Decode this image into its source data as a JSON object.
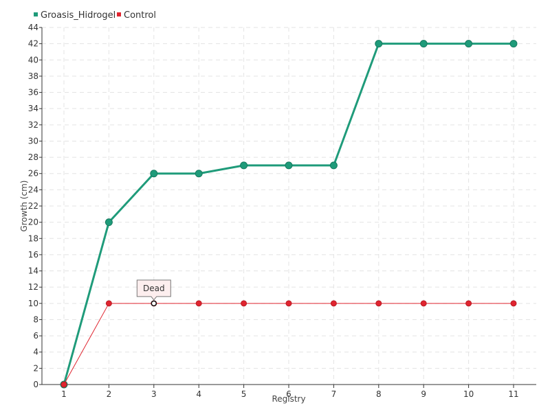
{
  "chart_data": {
    "type": "line",
    "title": "",
    "xlabel": "Registry",
    "ylabel": "Growth (cm)",
    "categories": [
      "1",
      "2",
      "3",
      "4",
      "5",
      "6",
      "7",
      "8",
      "9",
      "10",
      "11"
    ],
    "ylim": [
      0,
      44
    ],
    "ytick_step": 2,
    "grid": true,
    "legend_position": "top-left",
    "series": [
      {
        "name": "Groasis_Hidrogel",
        "color": "#1f9b7a",
        "values": [
          0,
          20,
          26,
          26,
          27,
          27,
          27,
          42,
          42,
          42,
          42
        ]
      },
      {
        "name": "Control",
        "color": "#e0242f",
        "values": [
          0,
          10,
          10,
          10,
          10,
          10,
          10,
          10,
          10,
          10,
          10
        ]
      }
    ],
    "annotations": [
      {
        "series": "Control",
        "category": "3",
        "text": "Dead"
      }
    ]
  }
}
